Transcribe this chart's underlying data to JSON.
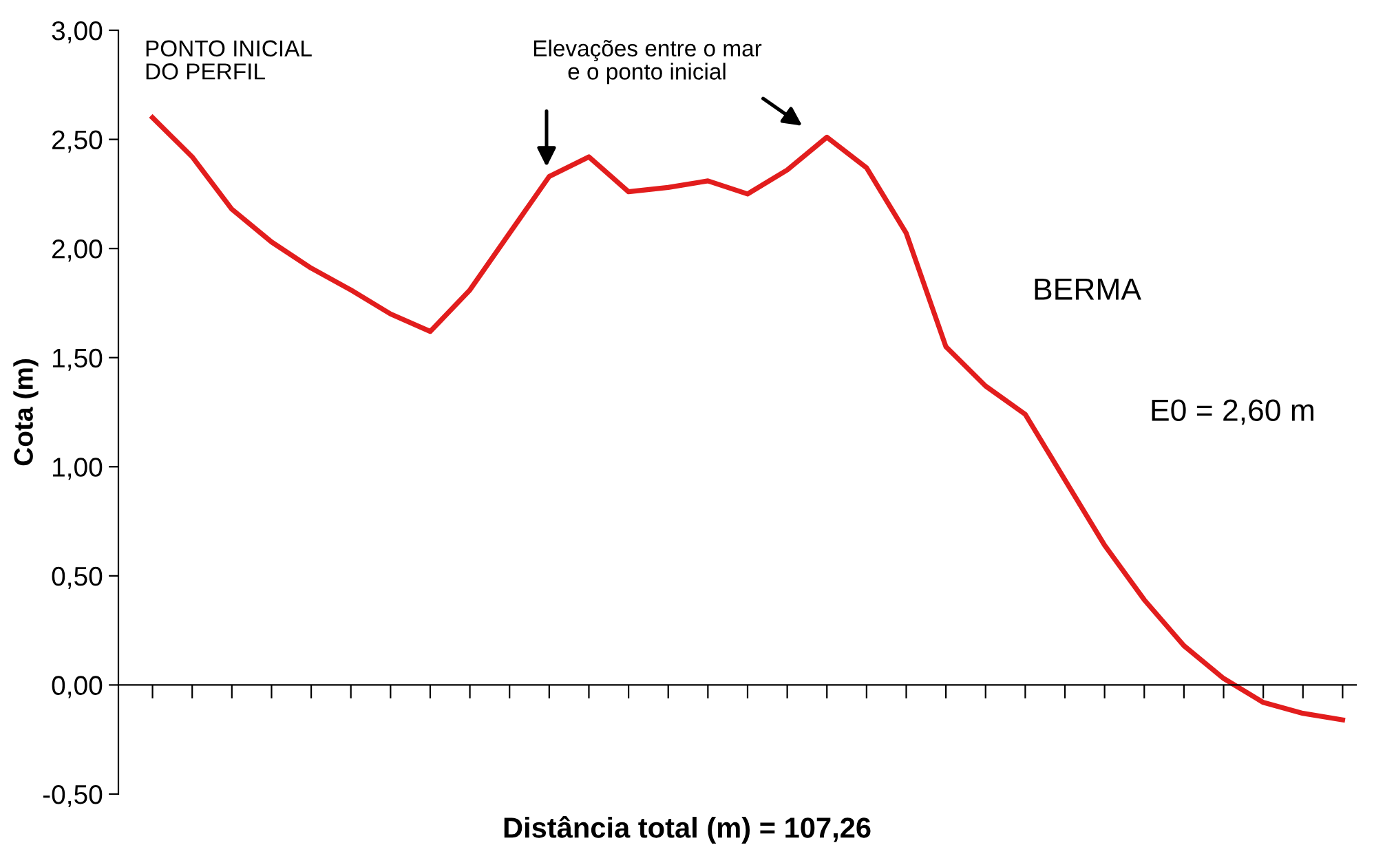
{
  "chart_data": {
    "type": "line",
    "xlabel": "Distância total (m) = 107,26",
    "ylabel": "Cota (m)",
    "categories": [
      null,
      null,
      null,
      null,
      null,
      null,
      null,
      null,
      null,
      null,
      null,
      null,
      null,
      null,
      null,
      null,
      null,
      null,
      null,
      null,
      null,
      null,
      null,
      null,
      null,
      null,
      null,
      null,
      null,
      null,
      null
    ],
    "series": [
      {
        "color": "#e21d1d",
        "values": [
          2.6,
          2.42,
          2.18,
          2.03,
          1.91,
          1.81,
          1.7,
          1.62,
          1.81,
          2.07,
          2.33,
          2.42,
          2.26,
          2.28,
          2.31,
          2.25,
          2.36,
          2.51,
          2.37,
          2.07,
          1.55,
          1.37,
          1.24,
          0.94,
          0.64,
          0.39,
          0.18,
          0.03,
          -0.08,
          -0.13,
          -0.16
        ]
      }
    ],
    "ylim": [
      -0.5,
      3.0
    ],
    "yticks": [
      {
        "value": -0.5,
        "label": "-0,50"
      },
      {
        "value": 0,
        "label": "0,00"
      },
      {
        "value": 0.5,
        "label": "0,50"
      },
      {
        "value": 1.0,
        "label": "1,00"
      },
      {
        "value": 1.5,
        "label": "1,50"
      },
      {
        "value": 2.0,
        "label": "2,00"
      },
      {
        "value": 2.5,
        "label": "2,50"
      },
      {
        "value": 3.0,
        "label": "3,00"
      }
    ],
    "annotations": [
      "PONTO INICIAL\nDO PERFIL",
      "Elevações entre o mar\ne o ponto inicial",
      "BERMA",
      "E0 = 2,60 m"
    ],
    "marker": "none",
    "line_style": "solid",
    "tick_labels": "y"
  }
}
